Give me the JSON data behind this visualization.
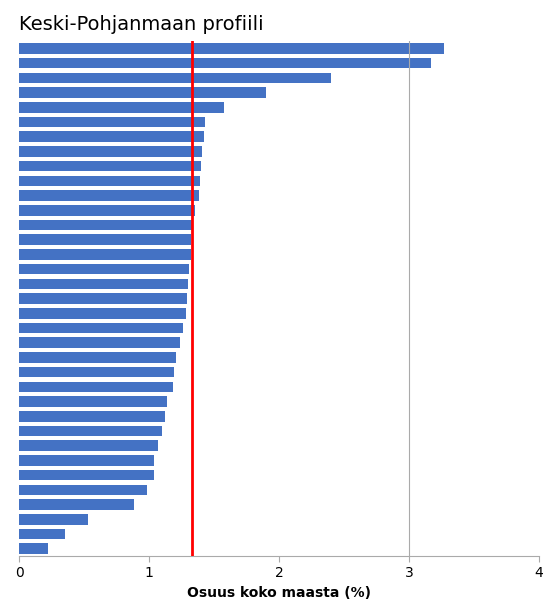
{
  "title": "Keski-Pohjanmaan profiili",
  "xlabel": "Osuus koko maasta (%)",
  "values": [
    3.27,
    3.17,
    2.4,
    1.9,
    1.58,
    1.43,
    1.42,
    1.41,
    1.4,
    1.39,
    1.38,
    1.35,
    1.33,
    1.32,
    1.32,
    1.31,
    1.3,
    1.29,
    1.28,
    1.26,
    1.24,
    1.21,
    1.19,
    1.18,
    1.14,
    1.12,
    1.1,
    1.07,
    1.04,
    1.04,
    0.98,
    0.88,
    0.53,
    0.35,
    0.22
  ],
  "bar_color": "#4472C4",
  "redline_x": 1.33,
  "xlim": [
    0,
    4
  ],
  "xticks": [
    0,
    1,
    2,
    3,
    4
  ],
  "background_color": "#ffffff",
  "title_fontsize": 14,
  "xlabel_fontsize": 10,
  "bar_height": 0.72
}
